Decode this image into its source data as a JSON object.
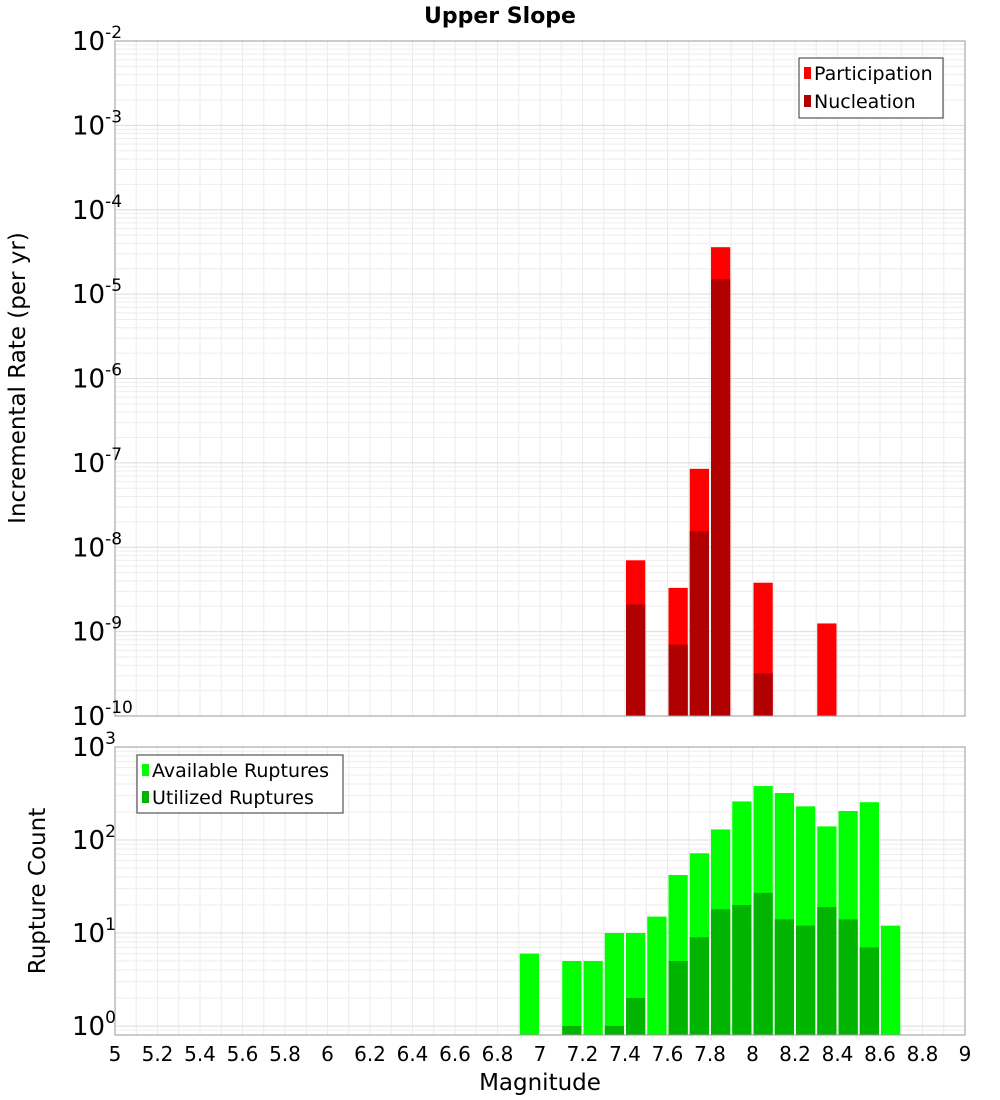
{
  "chart_data": {
    "type": "bar",
    "title": "Upper Slope",
    "xlabel": "Magnitude",
    "xlim": [
      5,
      9
    ],
    "x_ticks": [
      "5",
      "5.2",
      "5.4",
      "5.6",
      "5.8",
      "6",
      "6.2",
      "6.4",
      "6.6",
      "6.8",
      "7",
      "7.2",
      "7.4",
      "7.6",
      "7.8",
      "8",
      "8.2",
      "8.4",
      "8.6",
      "8.8",
      "9"
    ],
    "grid": true,
    "panels": [
      {
        "ylabel": "Incremental Rate (per yr)",
        "yscale": "log",
        "ylim": [
          1e-10,
          0.01
        ],
        "y_ticks": [
          {
            "base": "10",
            "exp": "-2"
          },
          {
            "base": "10",
            "exp": "-3"
          },
          {
            "base": "10",
            "exp": "-4"
          },
          {
            "base": "10",
            "exp": "-5"
          },
          {
            "base": "10",
            "exp": "-6"
          },
          {
            "base": "10",
            "exp": "-7"
          },
          {
            "base": "10",
            "exp": "-8"
          },
          {
            "base": "10",
            "exp": "-9"
          },
          {
            "base": "10",
            "exp": "-10"
          }
        ],
        "legend_position": "top-right",
        "series": [
          {
            "name": "Participation",
            "color": "#ff0000",
            "points": [
              {
                "x": 7.45,
                "y": 7e-09
              },
              {
                "x": 7.65,
                "y": 3.3e-09
              },
              {
                "x": 7.75,
                "y": 8.5e-08
              },
              {
                "x": 7.85,
                "y": 3.6e-05
              },
              {
                "x": 8.05,
                "y": 3.8e-09
              },
              {
                "x": 8.35,
                "y": 1.25e-09
              }
            ]
          },
          {
            "name": "Nucleation",
            "color": "#b00000",
            "points": [
              {
                "x": 7.45,
                "y": 2.1e-09
              },
              {
                "x": 7.65,
                "y": 7e-10
              },
              {
                "x": 7.75,
                "y": 1.55e-08
              },
              {
                "x": 7.85,
                "y": 1.5e-05
              },
              {
                "x": 8.05,
                "y": 3.2e-10
              }
            ]
          }
        ]
      },
      {
        "ylabel": "Rupture Count",
        "yscale": "log",
        "ylim": [
          0.8,
          1000
        ],
        "y_ticks": [
          {
            "base": "10",
            "exp": "3"
          },
          {
            "base": "10",
            "exp": "2"
          },
          {
            "base": "10",
            "exp": "1"
          },
          {
            "base": "10",
            "exp": "0"
          }
        ],
        "legend_position": "top-left",
        "series": [
          {
            "name": "Available Ruptures",
            "color": "#00ff00",
            "points": [
              {
                "x": 6.95,
                "y": 6
              },
              {
                "x": 7.15,
                "y": 5
              },
              {
                "x": 7.25,
                "y": 5
              },
              {
                "x": 7.35,
                "y": 10
              },
              {
                "x": 7.45,
                "y": 10
              },
              {
                "x": 7.55,
                "y": 15
              },
              {
                "x": 7.65,
                "y": 42
              },
              {
                "x": 7.75,
                "y": 72
              },
              {
                "x": 7.85,
                "y": 130
              },
              {
                "x": 7.95,
                "y": 260
              },
              {
                "x": 8.05,
                "y": 380
              },
              {
                "x": 8.15,
                "y": 320
              },
              {
                "x": 8.25,
                "y": 230
              },
              {
                "x": 8.35,
                "y": 140
              },
              {
                "x": 8.45,
                "y": 205
              },
              {
                "x": 8.55,
                "y": 255
              },
              {
                "x": 8.65,
                "y": 12
              }
            ]
          },
          {
            "name": "Utilized Ruptures",
            "color": "#00b400",
            "points": [
              {
                "x": 7.15,
                "y": 1
              },
              {
                "x": 7.35,
                "y": 1
              },
              {
                "x": 7.45,
                "y": 2
              },
              {
                "x": 7.65,
                "y": 5
              },
              {
                "x": 7.75,
                "y": 9
              },
              {
                "x": 7.85,
                "y": 18
              },
              {
                "x": 7.95,
                "y": 20
              },
              {
                "x": 8.05,
                "y": 27
              },
              {
                "x": 8.15,
                "y": 14
              },
              {
                "x": 8.25,
                "y": 12
              },
              {
                "x": 8.35,
                "y": 19
              },
              {
                "x": 8.45,
                "y": 14
              },
              {
                "x": 8.55,
                "y": 7
              }
            ]
          }
        ]
      }
    ]
  }
}
